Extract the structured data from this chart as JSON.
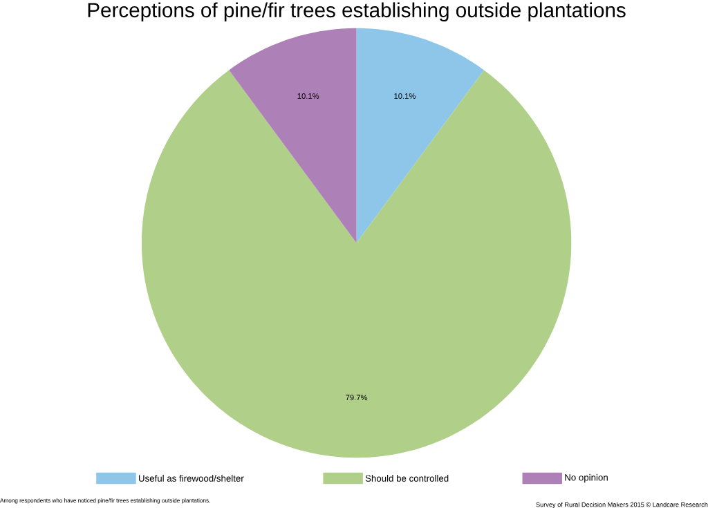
{
  "chart_data": {
    "type": "pie",
    "title": "Perceptions of pine/fir trees establishing outside plantations",
    "categories": [
      "Useful as firewood/shelter",
      "Should be controlled",
      "No opinion"
    ],
    "values": [
      10.1,
      79.7,
      10.1
    ],
    "colors": [
      "#8ec6ea",
      "#b0cf88",
      "#ae80b8"
    ],
    "value_labels": [
      "10.1%",
      "79.7%",
      "10.1%"
    ],
    "legend": "bottom",
    "annotations": [
      "Among respondents who have noticed pine/fir trees establishing outside plantations.",
      "Survey of Rural Decision Makers 2015 © Landcare Research"
    ]
  }
}
